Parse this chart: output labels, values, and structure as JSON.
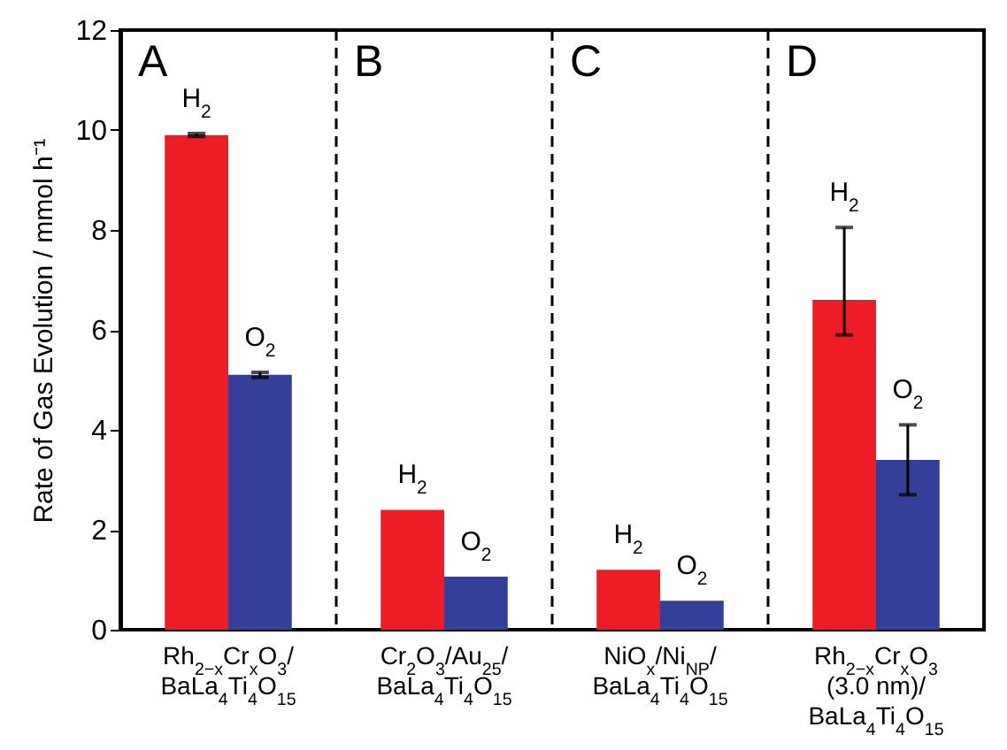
{
  "chart_data": {
    "type": "bar",
    "categories": [
      "Rh$_{2−x}$Cr$_{x}$O$_{3}$/\nBaLa$_{4}$Ti$_{4}$O$_{15}$",
      "Cr$_{2}$O$_{3}$/Au$_{25}$/\nBaLa$_{4}$Ti$_{4}$O$_{15}$",
      "NiO$_{x}$/Ni$_{NP}$/\nBaLa$_{4}$Ti$_{4}$O$_{15}$",
      "Rh$_{2−x}$Cr$_{x}$O$_{3}$\n(3.0 nm)/\nBaLa$_{4}$Ti$_{4}$O$_{15}$"
    ],
    "series": [
      {
        "name": "H$_{2}$",
        "color": "#ee1c25",
        "values": [
          9.9,
          2.4,
          1.2,
          6.6
        ],
        "errors": [
          0.03,
          null,
          null,
          [
            5.9,
            8.05
          ]
        ]
      },
      {
        "name": "O$_{2}$",
        "color": "#333f99",
        "values": [
          5.1,
          1.06,
          0.58,
          3.4
        ],
        "errors": [
          0.05,
          null,
          null,
          [
            2.7,
            4.1
          ]
        ]
      }
    ],
    "ylabel": "Rate of Gas Evolution / mmol h⁻¹",
    "ylim": [
      0,
      12
    ],
    "yticks": [
      0,
      2,
      4,
      6,
      8,
      10,
      12
    ],
    "annotations": [
      "A",
      "B",
      "C",
      "D"
    ],
    "grid": false
  }
}
